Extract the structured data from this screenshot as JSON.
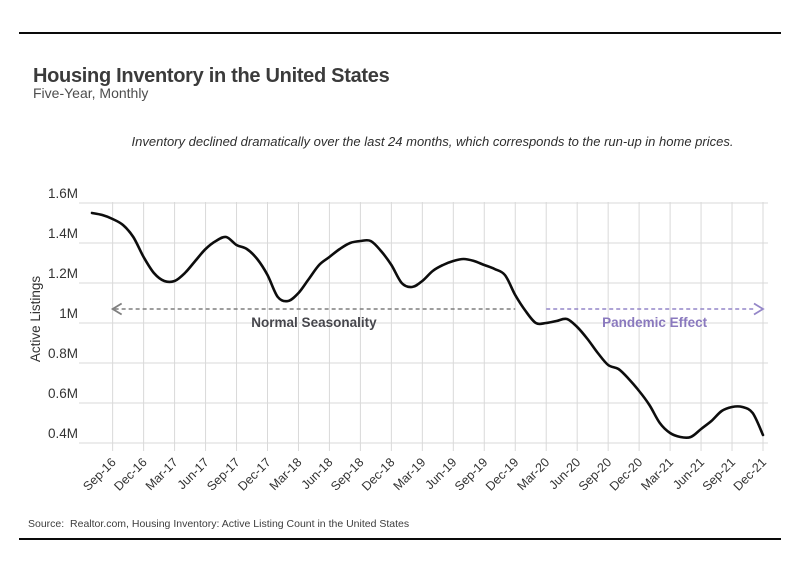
{
  "page": {
    "title": "Housing Inventory in the United States",
    "subtitle": "Five-Year, Monthly",
    "note": "Inventory declined dramatically over the last 24 months, which corresponds to the run-up in home prices.",
    "source": "Source:  Realtor.com, Housing Inventory: Active Listing Count in the United States"
  },
  "chart_data": {
    "type": "line",
    "title": "Housing Inventory in the United States",
    "subtitle": "Five-Year, Monthly",
    "xlabel": "",
    "ylabel": "Active Listings",
    "unit": "millions of listings",
    "grid": true,
    "line_color": "#0d0d0d",
    "grid_color": "#d9d9d9",
    "ylim": [
      0.35,
      1.65
    ],
    "y_ticks": [
      {
        "value": 1.6,
        "label": "1.6M"
      },
      {
        "value": 1.4,
        "label": "1.4M"
      },
      {
        "value": 1.2,
        "label": "1.2M"
      },
      {
        "value": 1.0,
        "label": "1M"
      },
      {
        "value": 0.8,
        "label": "0.8M"
      },
      {
        "value": 0.6,
        "label": "0.6M"
      },
      {
        "value": 0.4,
        "label": "0.4M"
      }
    ],
    "x_tick_labels": [
      "Sep-16",
      "Dec-16",
      "Mar-17",
      "Jun-17",
      "Sep-17",
      "Dec-17",
      "Mar-18",
      "Jun-18",
      "Sep-18",
      "Dec-18",
      "Mar-19",
      "Jun-19",
      "Sep-19",
      "Dec-19",
      "Mar-20",
      "Jun-20",
      "Sep-20",
      "Dec-20",
      "Mar-21",
      "Jun-21",
      "Sep-21",
      "Dec-21"
    ],
    "x": [
      "Jul-16",
      "Aug-16",
      "Sep-16",
      "Oct-16",
      "Nov-16",
      "Dec-16",
      "Jan-17",
      "Feb-17",
      "Mar-17",
      "Apr-17",
      "May-17",
      "Jun-17",
      "Jul-17",
      "Aug-17",
      "Sep-17",
      "Oct-17",
      "Nov-17",
      "Dec-17",
      "Jan-18",
      "Feb-18",
      "Mar-18",
      "Apr-18",
      "May-18",
      "Jun-18",
      "Jul-18",
      "Aug-18",
      "Sep-18",
      "Oct-18",
      "Nov-18",
      "Dec-18",
      "Jan-19",
      "Feb-19",
      "Mar-19",
      "Apr-19",
      "May-19",
      "Jun-19",
      "Jul-19",
      "Aug-19",
      "Sep-19",
      "Oct-19",
      "Nov-19",
      "Dec-19",
      "Jan-20",
      "Feb-20",
      "Mar-20",
      "Apr-20",
      "May-20",
      "Jun-20",
      "Jul-20",
      "Aug-20",
      "Sep-20",
      "Oct-20",
      "Nov-20",
      "Dec-20",
      "Jan-21",
      "Feb-21",
      "Mar-21",
      "Apr-21",
      "May-21",
      "Jun-21",
      "Jul-21",
      "Aug-21",
      "Sep-21",
      "Oct-21",
      "Nov-21",
      "Dec-21"
    ],
    "values": [
      1.55,
      1.54,
      1.52,
      1.49,
      1.43,
      1.33,
      1.25,
      1.21,
      1.21,
      1.25,
      1.31,
      1.37,
      1.41,
      1.43,
      1.39,
      1.37,
      1.32,
      1.24,
      1.13,
      1.11,
      1.15,
      1.22,
      1.29,
      1.33,
      1.37,
      1.4,
      1.41,
      1.41,
      1.36,
      1.29,
      1.2,
      1.18,
      1.21,
      1.26,
      1.29,
      1.31,
      1.32,
      1.31,
      1.29,
      1.27,
      1.24,
      1.14,
      1.06,
      1.0,
      1.0,
      1.01,
      1.02,
      0.98,
      0.92,
      0.85,
      0.79,
      0.77,
      0.72,
      0.66,
      0.59,
      0.5,
      0.45,
      0.43,
      0.43,
      0.47,
      0.51,
      0.56,
      0.58,
      0.58,
      0.55,
      0.44
    ],
    "annotations": [
      {
        "id": "normal-seasonality",
        "text": "Normal Seasonality",
        "direction": "left",
        "from_month": "Sep-16",
        "to_month": "Dec-19",
        "y_value": 1.07,
        "text_color": "#46464c",
        "arrow_color": "#7f7f7f"
      },
      {
        "id": "pandemic-effect",
        "text": "Pandemic Effect",
        "direction": "right",
        "from_month": "Mar-20",
        "to_month": "Dec-21",
        "y_value": 1.07,
        "text_color": "#8a79be",
        "arrow_color": "#9486c8"
      }
    ],
    "legend": null
  }
}
